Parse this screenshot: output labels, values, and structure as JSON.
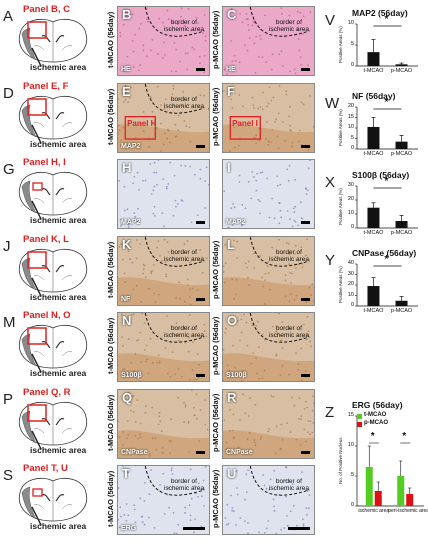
{
  "rows": [
    {
      "letter": "A",
      "ref": "Panel B, C",
      "micro": [
        {
          "letter": "B",
          "stain": "HE",
          "label": "t-MCAO (56day)",
          "type": "he",
          "border": true
        },
        {
          "letter": "C",
          "stain": "HE",
          "label": "p-MCAO (56day)",
          "type": "he",
          "border": true
        }
      ]
    },
    {
      "letter": "D",
      "ref": "Panel E, F",
      "micro": [
        {
          "letter": "E",
          "stain": "MAP2",
          "label": "t-MCAO (56day)",
          "type": "brown",
          "border": true,
          "inset": "Panel H"
        },
        {
          "letter": "F",
          "stain": "",
          "label": "p-MCAO (56day)",
          "type": "brown",
          "border": false,
          "inset": "Panel I"
        }
      ]
    },
    {
      "letter": "G",
      "ref": "Panel H, I",
      "micro": [
        {
          "letter": "H",
          "stain": "MAP2",
          "label": "",
          "type": "blue",
          "border": false
        },
        {
          "letter": "I",
          "stain": "MAP2",
          "label": "",
          "type": "blue",
          "border": false
        }
      ]
    },
    {
      "letter": "J",
      "ref": "Panel K, L",
      "micro": [
        {
          "letter": "K",
          "stain": "NF",
          "label": "t-MCAO (56day)",
          "type": "brown",
          "border": true
        },
        {
          "letter": "L",
          "stain": "",
          "label": "p-MCAO (56day)",
          "type": "brown",
          "border": true
        }
      ]
    },
    {
      "letter": "M",
      "ref": "Panel N, O",
      "micro": [
        {
          "letter": "N",
          "stain": "S100β",
          "label": "t-MCAO (56day)",
          "type": "brown",
          "border": true
        },
        {
          "letter": "O",
          "stain": "S100β",
          "label": "p-MCAO (56day)",
          "type": "brown",
          "border": true
        }
      ]
    },
    {
      "letter": "P",
      "ref": "Panel Q, R",
      "micro": [
        {
          "letter": "Q",
          "stain": "CNPase",
          "label": "t-MCAO (56day)",
          "type": "brown",
          "border": false
        },
        {
          "letter": "R",
          "stain": "CNPase",
          "label": "p-MCAO (56day)",
          "type": "brown",
          "border": false
        }
      ]
    },
    {
      "letter": "S",
      "ref": "Panel T, U",
      "micro": [
        {
          "letter": "T",
          "stain": "ERG",
          "label": "t-MCAO (56day)",
          "type": "blue",
          "border": true
        },
        {
          "letter": "U",
          "stain": "",
          "label": "p-MCAO (56day)",
          "type": "blue",
          "border": true
        }
      ]
    }
  ],
  "ischemic_label": "ischemic area",
  "border_label": "border of ischemic area",
  "colors": {
    "ref_red": "#e02020",
    "bar": "#111111",
    "star_yellow": "#ffe600",
    "legend_green": "#55cc22",
    "legend_red": "#dd1111"
  },
  "chart_data": [
    {
      "letter": "V",
      "type": "bar",
      "title": "MAP2 (56day)",
      "ylabel": "Positive Areas (%)",
      "categories": [
        "t-MCAO",
        "p-MCAO"
      ],
      "values": [
        3.3,
        0.4
      ],
      "errors": [
        3.0,
        0.3
      ],
      "ylim": [
        0,
        10
      ],
      "yticks": [
        0,
        5,
        10
      ],
      "significance": "*"
    },
    {
      "letter": "W",
      "type": "bar",
      "title": "NF (56day)",
      "ylabel": "Positive Areas (%)",
      "categories": [
        "t-MCAO",
        "p-MCAO"
      ],
      "values": [
        10.5,
        3.5
      ],
      "errors": [
        4.5,
        3.0
      ],
      "ylim": [
        0,
        20
      ],
      "yticks": [
        0,
        5,
        10,
        15,
        20
      ],
      "significance": "*"
    },
    {
      "letter": "X",
      "type": "bar",
      "title": "S100β (56day)",
      "ylabel": "Positive Areas (%)",
      "categories": [
        "t-MCAO",
        "p-MCAO"
      ],
      "values": [
        14.5,
        5.0
      ],
      "errors": [
        3.5,
        4.0
      ],
      "ylim": [
        0,
        30
      ],
      "yticks": [
        0,
        10,
        20,
        30
      ],
      "significance": "*"
    },
    {
      "letter": "Y",
      "type": "bar",
      "title": "CNPase (56day)",
      "ylabel": "Positive Areas (%)",
      "categories": [
        "t-MCAO",
        "p-MCAO"
      ],
      "values": [
        19.0,
        5.0
      ],
      "errors": [
        8.0,
        4.0
      ],
      "ylim": [
        0,
        40
      ],
      "yticks": [
        0,
        10,
        20,
        30,
        40
      ],
      "significance": "*"
    },
    {
      "letter": "Z",
      "type": "bar",
      "title": "ERG (56day)",
      "ylabel": "No. of Positive Nucleus",
      "categories": [
        "ischemic area",
        "peri-ischemic area"
      ],
      "series": [
        {
          "name": "t-MCAO",
          "values": [
            6.5,
            5.0
          ],
          "errors": [
            3.5,
            2.5
          ]
        },
        {
          "name": "p-MCAO",
          "values": [
            2.5,
            2.0
          ],
          "errors": [
            1.5,
            1.0
          ]
        }
      ],
      "ylim": [
        0,
        15
      ],
      "yticks": [
        0,
        5,
        10,
        15
      ],
      "significance": "*"
    }
  ]
}
